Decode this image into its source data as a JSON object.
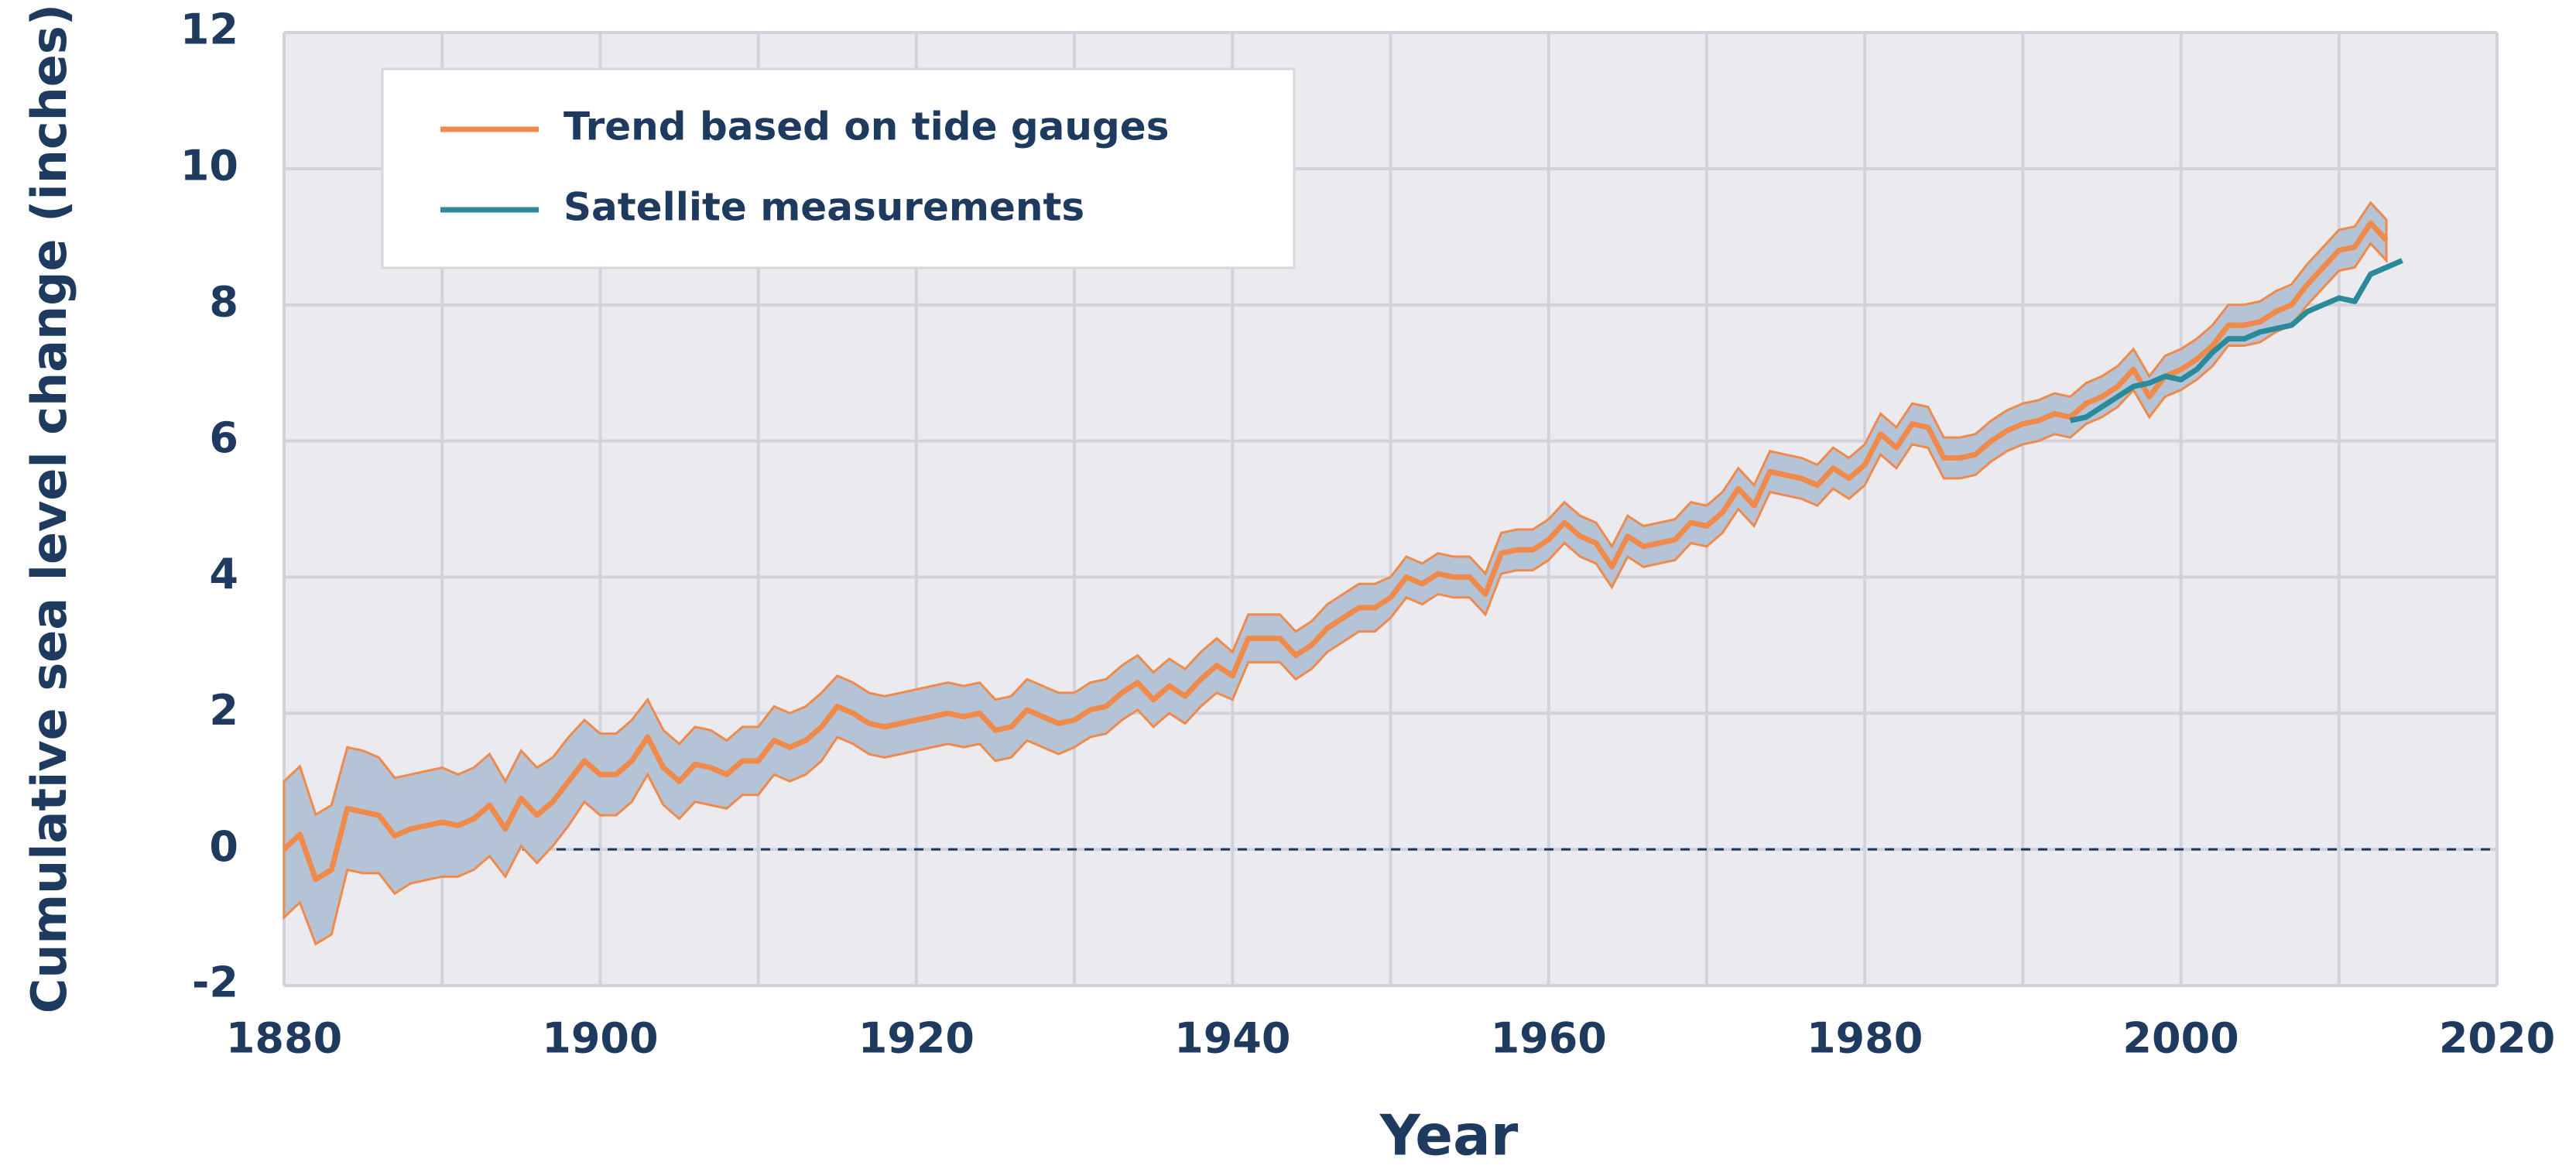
{
  "chart_data": {
    "type": "line",
    "xlabel": "Year",
    "ylabel": "Cumulative sea level change (inches)",
    "xlim": [
      1880,
      2020
    ],
    "xticks": [
      1880,
      1900,
      1920,
      1940,
      1960,
      1980,
      2000,
      2020
    ],
    "xminorticks": [
      1890,
      1910,
      1930,
      1950,
      1970,
      1990,
      2010
    ],
    "ylim": [
      -2,
      12
    ],
    "yticks": [
      -2,
      0,
      2,
      4,
      6,
      8,
      10,
      12
    ],
    "grid": true,
    "legend": "upper left",
    "band_color": "#b5c3d7",
    "series": [
      {
        "name": "Trend based on tide gauges",
        "color": "#f08a4b",
        "x": [
          1880,
          1881,
          1882,
          1883,
          1884,
          1885,
          1886,
          1887,
          1888,
          1889,
          1890,
          1891,
          1892,
          1893,
          1894,
          1895,
          1896,
          1897,
          1898,
          1899,
          1900,
          1901,
          1902,
          1903,
          1904,
          1905,
          1906,
          1907,
          1908,
          1909,
          1910,
          1911,
          1912,
          1913,
          1914,
          1915,
          1916,
          1917,
          1918,
          1919,
          1920,
          1921,
          1922,
          1923,
          1924,
          1925,
          1926,
          1927,
          1928,
          1929,
          1930,
          1931,
          1932,
          1933,
          1934,
          1935,
          1936,
          1937,
          1938,
          1939,
          1940,
          1941,
          1942,
          1943,
          1944,
          1945,
          1946,
          1947,
          1948,
          1949,
          1950,
          1951,
          1952,
          1953,
          1954,
          1955,
          1956,
          1957,
          1958,
          1959,
          1960,
          1961,
          1962,
          1963,
          1964,
          1965,
          1966,
          1967,
          1968,
          1969,
          1970,
          1971,
          1972,
          1973,
          1974,
          1975,
          1976,
          1977,
          1978,
          1979,
          1980,
          1981,
          1982,
          1983,
          1984,
          1985,
          1986,
          1987,
          1988,
          1989,
          1990,
          1991,
          1992,
          1993,
          1994,
          1995,
          1996,
          1997,
          1998,
          1999,
          2000,
          2001,
          2002,
          2003,
          2004,
          2005,
          2006,
          2007,
          2008,
          2009,
          2010,
          2011,
          2012,
          2013
        ],
        "values": [
          0.0,
          0.22,
          -0.44,
          -0.3,
          0.6,
          0.55,
          0.5,
          0.2,
          0.3,
          0.35,
          0.4,
          0.35,
          0.45,
          0.65,
          0.3,
          0.75,
          0.5,
          0.7,
          1.0,
          1.3,
          1.1,
          1.1,
          1.3,
          1.65,
          1.2,
          1.0,
          1.25,
          1.2,
          1.1,
          1.3,
          1.3,
          1.6,
          1.5,
          1.6,
          1.8,
          2.1,
          2.0,
          1.85,
          1.8,
          1.85,
          1.9,
          1.95,
          2.0,
          1.95,
          2.0,
          1.75,
          1.8,
          2.05,
          1.95,
          1.85,
          1.9,
          2.05,
          2.1,
          2.3,
          2.45,
          2.2,
          2.4,
          2.25,
          2.5,
          2.7,
          2.55,
          3.1,
          3.1,
          3.1,
          2.85,
          3.0,
          3.25,
          3.4,
          3.55,
          3.55,
          3.7,
          4.0,
          3.9,
          4.05,
          4.0,
          4.0,
          3.75,
          4.35,
          4.4,
          4.4,
          4.55,
          4.8,
          4.6,
          4.5,
          4.15,
          4.6,
          4.45,
          4.5,
          4.55,
          4.8,
          4.75,
          4.95,
          5.3,
          5.05,
          5.55,
          5.5,
          5.45,
          5.35,
          5.6,
          5.45,
          5.65,
          6.1,
          5.9,
          6.25,
          6.2,
          5.75,
          5.75,
          5.8,
          6.0,
          6.15,
          6.25,
          6.3,
          6.4,
          6.35,
          6.55,
          6.65,
          6.8,
          7.05,
          6.65,
          6.95,
          7.05,
          7.2,
          7.4,
          7.7,
          7.7,
          7.75,
          7.9,
          8.0,
          8.3,
          8.55,
          8.8,
          8.85,
          9.2,
          8.95
        ],
        "errors": [
          1.0,
          1.0,
          0.95,
          0.95,
          0.9,
          0.9,
          0.85,
          0.85,
          0.8,
          0.8,
          0.8,
          0.75,
          0.75,
          0.75,
          0.7,
          0.7,
          0.7,
          0.65,
          0.65,
          0.6,
          0.6,
          0.6,
          0.6,
          0.55,
          0.55,
          0.55,
          0.55,
          0.55,
          0.5,
          0.5,
          0.5,
          0.5,
          0.5,
          0.5,
          0.5,
          0.45,
          0.45,
          0.45,
          0.45,
          0.45,
          0.45,
          0.45,
          0.45,
          0.45,
          0.45,
          0.45,
          0.45,
          0.45,
          0.45,
          0.45,
          0.4,
          0.4,
          0.4,
          0.4,
          0.4,
          0.4,
          0.4,
          0.4,
          0.4,
          0.4,
          0.35,
          0.35,
          0.35,
          0.35,
          0.35,
          0.35,
          0.35,
          0.35,
          0.35,
          0.35,
          0.3,
          0.3,
          0.3,
          0.3,
          0.3,
          0.3,
          0.3,
          0.3,
          0.3,
          0.3,
          0.3,
          0.3,
          0.3,
          0.3,
          0.3,
          0.3,
          0.3,
          0.3,
          0.3,
          0.3,
          0.3,
          0.3,
          0.3,
          0.3,
          0.3,
          0.3,
          0.3,
          0.3,
          0.3,
          0.3,
          0.3,
          0.3,
          0.3,
          0.3,
          0.3,
          0.3,
          0.3,
          0.3,
          0.3,
          0.3,
          0.3,
          0.3,
          0.3,
          0.3,
          0.3,
          0.3,
          0.3,
          0.3,
          0.3,
          0.3,
          0.3,
          0.3,
          0.3,
          0.3,
          0.3,
          0.3,
          0.3,
          0.3,
          0.3,
          0.3,
          0.3,
          0.3,
          0.3,
          0.3
        ]
      },
      {
        "name": "Satellite measurements",
        "color": "#2a8a99",
        "x": [
          1993,
          1994,
          1995,
          1996,
          1997,
          1998,
          1999,
          2000,
          2001,
          2002,
          2003,
          2004,
          2005,
          2006,
          2007,
          2008,
          2009,
          2010,
          2011,
          2012,
          2013,
          2014
        ],
        "values": [
          6.3,
          6.35,
          6.5,
          6.65,
          6.8,
          6.85,
          6.95,
          6.9,
          7.05,
          7.3,
          7.5,
          7.5,
          7.6,
          7.65,
          7.7,
          7.9,
          8.0,
          8.1,
          8.05,
          8.45,
          8.55,
          8.65
        ]
      }
    ]
  }
}
